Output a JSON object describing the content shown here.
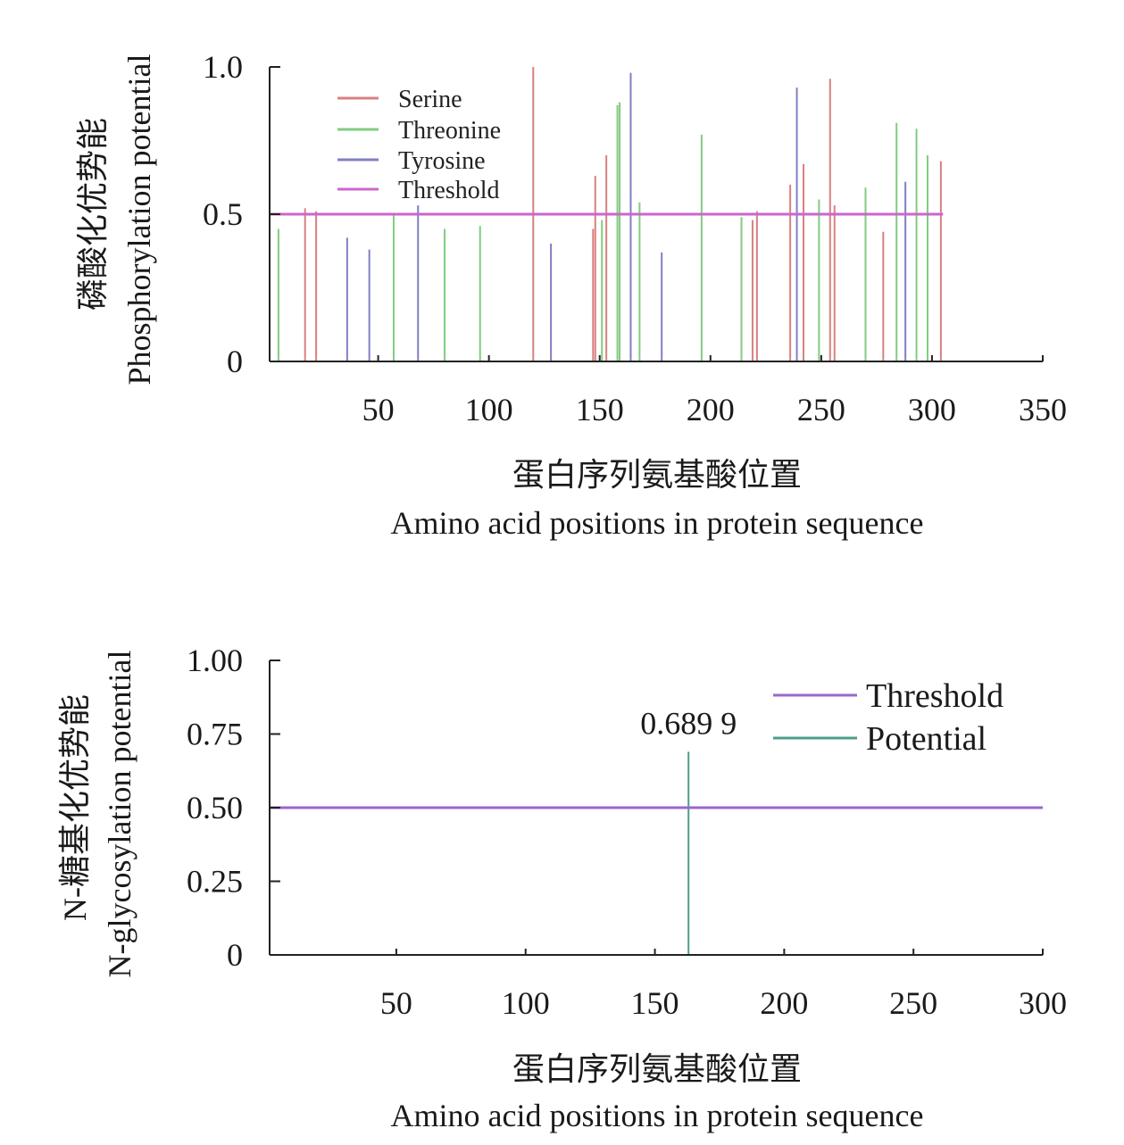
{
  "chart_data": [
    {
      "type": "bar",
      "title": "",
      "ylabel_cn": "磷酸化优势能",
      "ylabel": "Phosphorylation potential",
      "xlabel_cn": "蛋白序列氨基酸位置",
      "xlabel": "Amino acid positions in protein sequence",
      "xlim": [
        1,
        350
      ],
      "ylim": [
        0,
        1.0
      ],
      "xticks": [
        50,
        100,
        150,
        200,
        250,
        300,
        350
      ],
      "yticks": [
        0,
        0.5,
        1.0
      ],
      "ytick_labels": [
        "0",
        "0.5",
        "1.0"
      ],
      "legend_position": "top-left",
      "colors": {
        "Serine": "#d98080",
        "Threonine": "#80cc80",
        "Tyrosine": "#7f7fc4",
        "Threshold": "#cc66cc"
      },
      "legend": [
        "Serine",
        "Threonine",
        "Tyrosine",
        "Threshold"
      ],
      "threshold": 0.5,
      "threshold_range": [
        1,
        305
      ],
      "series": [
        {
          "name": "Serine",
          "points": [
            [
              17,
              0.52
            ],
            [
              22,
              0.51
            ],
            [
              120,
              1.0
            ],
            [
              147,
              0.45
            ],
            [
              148,
              0.63
            ],
            [
              153,
              0.7
            ],
            [
              219,
              0.48
            ],
            [
              221,
              0.51
            ],
            [
              236,
              0.6
            ],
            [
              242,
              0.67
            ],
            [
              254,
              0.96
            ],
            [
              256,
              0.53
            ],
            [
              278,
              0.44
            ],
            [
              304,
              0.68
            ]
          ]
        },
        {
          "name": "Threonine",
          "points": [
            [
              5,
              0.45
            ],
            [
              57,
              0.5
            ],
            [
              80,
              0.45
            ],
            [
              96,
              0.46
            ],
            [
              151,
              0.48
            ],
            [
              158,
              0.87
            ],
            [
              159,
              0.88
            ],
            [
              168,
              0.54
            ],
            [
              196,
              0.77
            ],
            [
              214,
              0.49
            ],
            [
              249,
              0.55
            ],
            [
              270,
              0.59
            ],
            [
              284,
              0.81
            ],
            [
              293,
              0.79
            ],
            [
              298,
              0.7
            ]
          ]
        },
        {
          "name": "Tyrosine",
          "points": [
            [
              36,
              0.42
            ],
            [
              46,
              0.38
            ],
            [
              68,
              0.53
            ],
            [
              128,
              0.4
            ],
            [
              164,
              0.98
            ],
            [
              178,
              0.37
            ],
            [
              239,
              0.93
            ],
            [
              288,
              0.61
            ]
          ]
        }
      ]
    },
    {
      "type": "bar",
      "title": "",
      "ylabel_cn": "N-糖基化优势能",
      "ylabel": "N-glycosylation potential",
      "xlabel_cn": "蛋白序列氨基酸位置",
      "xlabel": "Amino acid positions in protein sequence",
      "xlim": [
        1,
        300
      ],
      "ylim": [
        0,
        1.0
      ],
      "xticks": [
        50,
        100,
        150,
        200,
        250,
        300
      ],
      "yticks": [
        0,
        0.25,
        0.5,
        0.75,
        1.0
      ],
      "ytick_labels": [
        "0",
        "0.25",
        "0.50",
        "0.75",
        "1.00"
      ],
      "legend_position": "top-right",
      "colors": {
        "Threshold": "#9966cc",
        "Potential": "#4d9e8c"
      },
      "legend": [
        "Threshold",
        "Potential"
      ],
      "threshold": 0.5,
      "series": [
        {
          "name": "Potential",
          "points": [
            [
              163,
              0.6899
            ]
          ]
        }
      ],
      "annotation": "0.689 9"
    }
  ]
}
